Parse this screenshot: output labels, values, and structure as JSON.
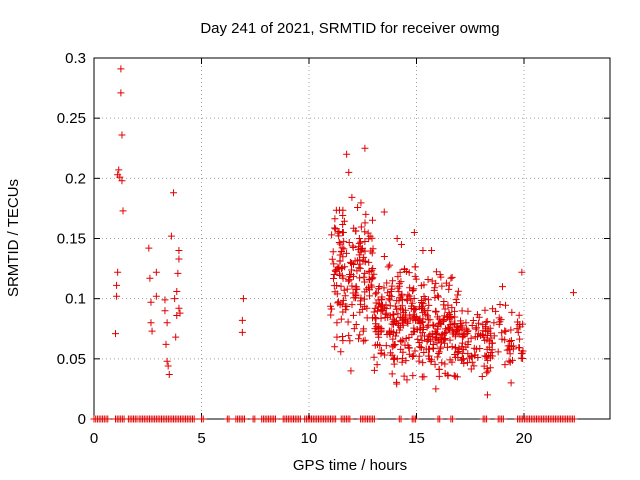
{
  "chart_data": {
    "type": "scatter",
    "title": "Day 241 of 2021, SRMTID for receiver owmg",
    "xlabel": "GPS time / hours",
    "ylabel": "SRMTID / TECUs",
    "xlim": [
      0,
      24
    ],
    "ylim": [
      0,
      0.3
    ],
    "xticks": [
      0,
      5,
      10,
      15,
      20
    ],
    "xtick_labels": [
      "0",
      "5",
      "10",
      "15",
      "20"
    ],
    "yticks": [
      0,
      0.05,
      0.1,
      0.15,
      0.2,
      0.25,
      0.3
    ],
    "ytick_labels": [
      "0",
      "0.05",
      "0.1",
      "0.15",
      "0.2",
      "0.25",
      "0.3"
    ],
    "grid": true,
    "marker": "+",
    "color": "#e00000",
    "series": [
      {
        "name": "SRMTID",
        "points": [
          [
            1.0,
            0.071
          ],
          [
            1.05,
            0.102
          ],
          [
            1.05,
            0.111
          ],
          [
            1.1,
            0.122
          ],
          [
            1.1,
            0.203
          ],
          [
            1.15,
            0.207
          ],
          [
            1.2,
            0.201
          ],
          [
            1.25,
            0.271
          ],
          [
            1.25,
            0.291
          ],
          [
            1.3,
            0.236
          ],
          [
            1.3,
            0.198
          ],
          [
            1.35,
            0.173
          ],
          [
            2.55,
            0.142
          ],
          [
            2.6,
            0.117
          ],
          [
            2.65,
            0.097
          ],
          [
            2.65,
            0.08
          ],
          [
            2.7,
            0.073
          ],
          [
            2.9,
            0.122
          ],
          [
            2.9,
            0.102
          ],
          [
            3.3,
            0.099
          ],
          [
            3.3,
            0.09
          ],
          [
            3.35,
            0.062
          ],
          [
            3.4,
            0.08
          ],
          [
            3.4,
            0.048
          ],
          [
            3.45,
            0.044
          ],
          [
            3.5,
            0.037
          ],
          [
            3.6,
            0.152
          ],
          [
            3.7,
            0.188
          ],
          [
            3.75,
            0.1
          ],
          [
            3.8,
            0.068
          ],
          [
            3.85,
            0.086
          ],
          [
            3.85,
            0.106
          ],
          [
            3.9,
            0.121
          ],
          [
            3.95,
            0.133
          ],
          [
            3.95,
            0.14
          ],
          [
            3.95,
            0.092
          ],
          [
            4.0,
            0.088
          ],
          [
            6.9,
            0.072
          ],
          [
            6.9,
            0.082
          ],
          [
            6.95,
            0.1
          ],
          [
            11.3,
            0.068
          ],
          [
            11.3,
            0.08
          ],
          [
            11.9,
            0.065
          ],
          [
            11.95,
            0.04
          ],
          [
            11.6,
            0.155
          ],
          [
            11.75,
            0.22
          ],
          [
            11.85,
            0.205
          ],
          [
            12.6,
            0.225
          ],
          [
            13.5,
            0.172
          ],
          [
            14.1,
            0.15
          ],
          [
            14.3,
            0.145
          ],
          [
            14.9,
            0.155
          ],
          [
            15.3,
            0.14
          ],
          [
            15.7,
            0.14
          ],
          [
            16.1,
            0.12
          ],
          [
            16.6,
            0.117
          ],
          [
            17.3,
            0.08
          ],
          [
            18.3,
            0.02
          ],
          [
            19.0,
            0.11
          ],
          [
            19.9,
            0.122
          ],
          [
            22.3,
            0.105
          ],
          [
            19.4,
            0.03
          ],
          [
            18.6,
            0.08
          ],
          [
            16.9,
            0.035
          ],
          [
            15.9,
            0.025
          ]
        ]
      }
    ],
    "dense_clusters": [
      {
        "x_range": [
          11.0,
          13.0
        ],
        "y_range": [
          0.04,
          0.2
        ],
        "count": 180
      },
      {
        "x_range": [
          13.0,
          15.0
        ],
        "y_range": [
          0.02,
          0.15
        ],
        "count": 200
      },
      {
        "x_range": [
          15.0,
          17.0
        ],
        "y_range": [
          0.02,
          0.13
        ],
        "count": 190
      },
      {
        "x_range": [
          17.0,
          18.5
        ],
        "y_range": [
          0.02,
          0.1
        ],
        "count": 90
      },
      {
        "x_range": [
          18.5,
          20.0
        ],
        "y_range": [
          0.02,
          0.11
        ],
        "count": 50
      }
    ],
    "zero_bands": [
      [
        0.0,
        0.7
      ],
      [
        1.0,
        1.4
      ],
      [
        1.6,
        2.0
      ],
      [
        2.1,
        4.7
      ],
      [
        5.0,
        5.1
      ],
      [
        6.2,
        6.3
      ],
      [
        6.6,
        7.0
      ],
      [
        7.4,
        7.5
      ],
      [
        7.8,
        8.5
      ],
      [
        8.8,
        9.6
      ],
      [
        9.8,
        11.3
      ],
      [
        11.5,
        11.9
      ],
      [
        12.4,
        13.1
      ],
      [
        14.2,
        14.3
      ],
      [
        14.8,
        15.0
      ],
      [
        16.0,
        16.1
      ],
      [
        16.6,
        16.7
      ],
      [
        18.1,
        18.3
      ],
      [
        18.8,
        19.1
      ],
      [
        19.7,
        22.4
      ]
    ]
  }
}
